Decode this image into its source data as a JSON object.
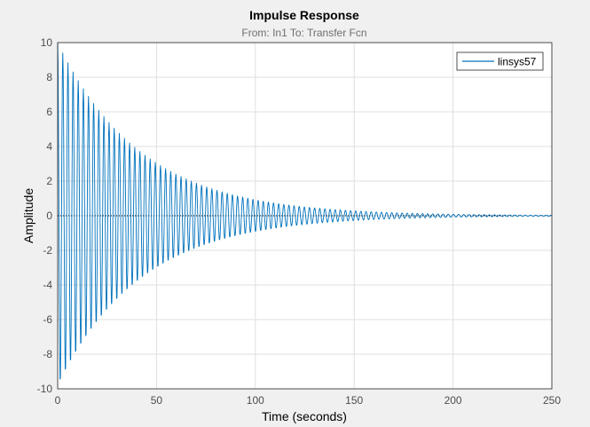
{
  "colors": {
    "figure_bg": "#f0f0f0",
    "axes_bg": "#ffffff",
    "grid": "#dfdfdf",
    "axis": "#262626",
    "tick_label": "#4d4d4d",
    "subtitle": "#6e6e6e",
    "line": "#0072bd",
    "zero_line": "#000000"
  },
  "chart_data": {
    "type": "line",
    "title": "Impulse Response",
    "subtitle": "From: In1  To: Transfer Fcn",
    "xlabel": "Time (seconds)",
    "ylabel": "Amplitude",
    "xlim": [
      0,
      250
    ],
    "ylim": [
      -10,
      10
    ],
    "xticks": [
      0,
      50,
      100,
      150,
      200,
      250
    ],
    "yticks": [
      -10,
      -8,
      -6,
      -4,
      -2,
      0,
      2,
      4,
      6,
      8,
      10
    ],
    "grid": true,
    "legend_location": "top-right",
    "series": [
      {
        "name": "linsys57",
        "model": "damped sinusoid",
        "initial_amplitude": 10,
        "decay_time_constant_seconds": 42,
        "oscillation_period_seconds": 2.6,
        "sample_step_seconds": 0.2
      }
    ],
    "reference_lines": [
      {
        "axis": "y",
        "value": 0,
        "style": "dotted"
      }
    ]
  }
}
